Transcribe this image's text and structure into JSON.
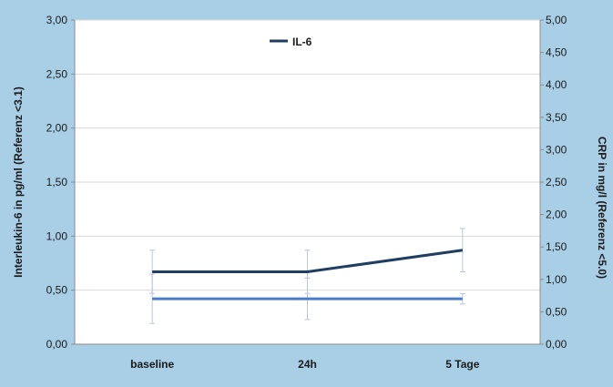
{
  "chart_data": {
    "type": "line",
    "categories": [
      "baseline",
      "24h",
      "5 Tage"
    ],
    "ylabel_left": "Interleukin-6 in pg/ml (Referenz <3.1)",
    "ylabel_right": "CRP in mg/l (Referenz <5.0)",
    "ylim_left": [
      0,
      3
    ],
    "ylim_right": [
      0,
      5
    ],
    "yticks_left": [
      "0,00",
      "0,50",
      "1,00",
      "1,50",
      "2,00",
      "2,50",
      "3,00"
    ],
    "yticks_right": [
      "0,00",
      "0,50",
      "1,00",
      "1,50",
      "2,00",
      "2,50",
      "3,00",
      "3,50",
      "4,00",
      "4,50",
      "5,00"
    ],
    "grid": true,
    "legend": [
      "IL-6"
    ],
    "legend_position": "top-center",
    "series": [
      {
        "name": "IL-6",
        "axis": "left",
        "color": "#1f3f60",
        "values": [
          0.67,
          0.67,
          0.87
        ],
        "error": [
          0.2,
          0.2,
          0.2
        ]
      },
      {
        "axis": "right",
        "color": "#4a7bc8",
        "values": [
          0.7,
          0.7,
          0.7
        ],
        "error": [
          0.38,
          0.32,
          0.08
        ]
      }
    ]
  }
}
